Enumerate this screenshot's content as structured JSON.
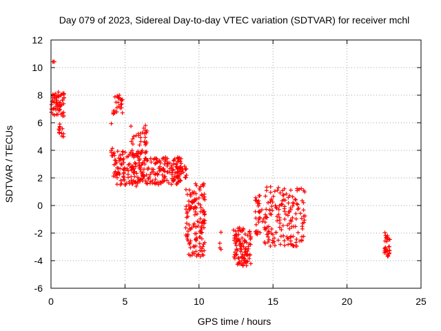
{
  "chart_data": {
    "type": "scatter",
    "title": "Day 079 of 2023, Sidereal Day-to-day VTEC variation (SDTVAR) for receiver mchl",
    "xlabel": "GPS time / hours",
    "ylabel": "SDTVAR / TECUs",
    "xlim": [
      0,
      25
    ],
    "ylim": [
      -6,
      12
    ],
    "xticks": [
      0,
      5,
      10,
      15,
      20,
      25
    ],
    "yticks": [
      -6,
      -4,
      -2,
      0,
      2,
      4,
      6,
      8,
      10,
      12
    ],
    "grid": true,
    "marker": "+",
    "color": "#ff0000",
    "series": [
      {
        "name": "SDTVAR",
        "clusters": [
          {
            "x": [
              0.0,
              0.9
            ],
            "y": [
              6.4,
              8.3
            ],
            "n": 60
          },
          {
            "x": [
              0.1,
              0.3
            ],
            "y": [
              10.3,
              10.5
            ],
            "n": 3
          },
          {
            "x": [
              0.5,
              0.9
            ],
            "y": [
              4.9,
              6.0
            ],
            "n": 12
          },
          {
            "x": [
              4.2,
              4.9
            ],
            "y": [
              6.6,
              8.0
            ],
            "n": 25
          },
          {
            "x": [
              4.0,
              4.3
            ],
            "y": [
              3.6,
              4.3
            ],
            "n": 6
          },
          {
            "x": [
              4.0,
              4.1
            ],
            "y": [
              5.8,
              6.0
            ],
            "n": 1
          },
          {
            "x": [
              4.2,
              6.5
            ],
            "y": [
              1.4,
              4.0
            ],
            "n": 140
          },
          {
            "x": [
              5.4,
              6.5
            ],
            "y": [
              2.6,
              6.0
            ],
            "n": 40
          },
          {
            "x": [
              6.4,
              8.8
            ],
            "y": [
              1.5,
              3.5
            ],
            "n": 130
          },
          {
            "x": [
              8.5,
              9.2
            ],
            "y": [
              1.6,
              2.9
            ],
            "n": 25
          },
          {
            "x": [
              9.1,
              10.4
            ],
            "y": [
              -3.7,
              1.6
            ],
            "n": 140
          },
          {
            "x": [
              11.4,
              11.5
            ],
            "y": [
              -3.7,
              -1.9
            ],
            "n": 4
          },
          {
            "x": [
              12.3,
              13.5
            ],
            "y": [
              -4.4,
              -1.6
            ],
            "n": 100
          },
          {
            "x": [
              13.8,
              14.4
            ],
            "y": [
              -2.2,
              0.8
            ],
            "n": 30
          },
          {
            "x": [
              14.4,
              17.2
            ],
            "y": [
              -3.0,
              1.4
            ],
            "n": 160
          },
          {
            "x": [
              22.5,
              22.9
            ],
            "y": [
              -3.7,
              -1.9
            ],
            "n": 30
          }
        ]
      }
    ]
  }
}
